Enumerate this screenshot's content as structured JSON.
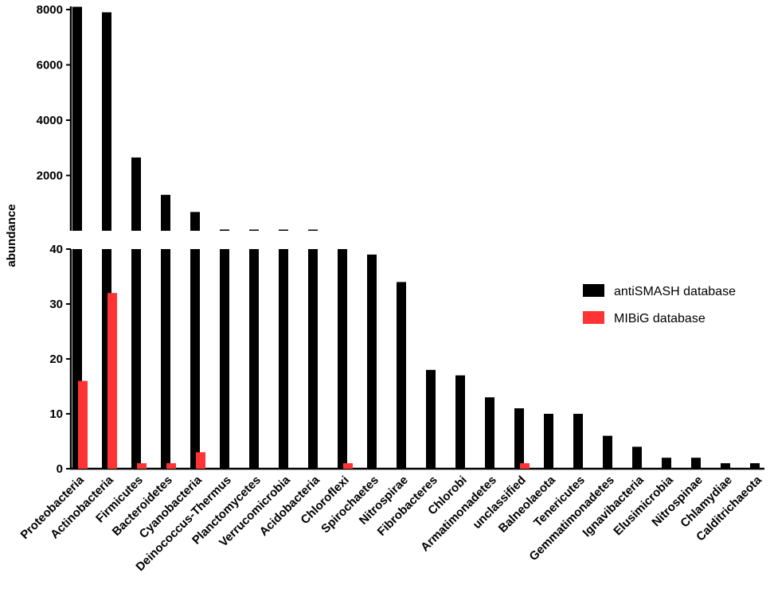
{
  "chart_data": {
    "type": "bar",
    "title": "",
    "xlabel": "",
    "ylabel": "abundance",
    "broken_axis": {
      "lower_range": [
        0,
        40
      ],
      "upper_range": [
        0,
        8000
      ],
      "lower_ticks": [
        0,
        10,
        20,
        30,
        40
      ],
      "upper_ticks": [
        2000,
        4000,
        6000,
        8000
      ]
    },
    "categories": [
      "Proteobacteria",
      "Actinobacteria",
      "Firmicutes",
      "Bacteroidetes",
      "Cyanobacteria",
      "Deinococcus-Thermus",
      "Planctomycetes",
      "Verrucomicrobia",
      "Acidobacteria",
      "Chloroflexi",
      "Spirochaetes",
      "Nitrospirae",
      "Fibrobacteres",
      "Chlorobi",
      "Armatimonadetes",
      "unclassified",
      "Balneolaeota",
      "Tenericutes",
      "Gemmatimonadetes",
      "Ignavibacteria",
      "Elusimicrobia",
      "Nitrospinae",
      "Chlamydiae",
      "Calditrichaeota"
    ],
    "series": [
      {
        "name": "antiSMASH database",
        "color": "#000000",
        "values": [
          8100,
          7900,
          2650,
          1300,
          680,
          45,
          43,
          42,
          41,
          40,
          39,
          34,
          18,
          17,
          13,
          11,
          10,
          10,
          6,
          4,
          2,
          2,
          1,
          1
        ]
      },
      {
        "name": "MIBiG database",
        "color": "#ff3333",
        "values": [
          16,
          32,
          1,
          1,
          3,
          0,
          0,
          0,
          0,
          1,
          0,
          0,
          0,
          0,
          0,
          1,
          0,
          0,
          0,
          0,
          0,
          0,
          0,
          0
        ]
      }
    ],
    "legend_position": "right"
  }
}
